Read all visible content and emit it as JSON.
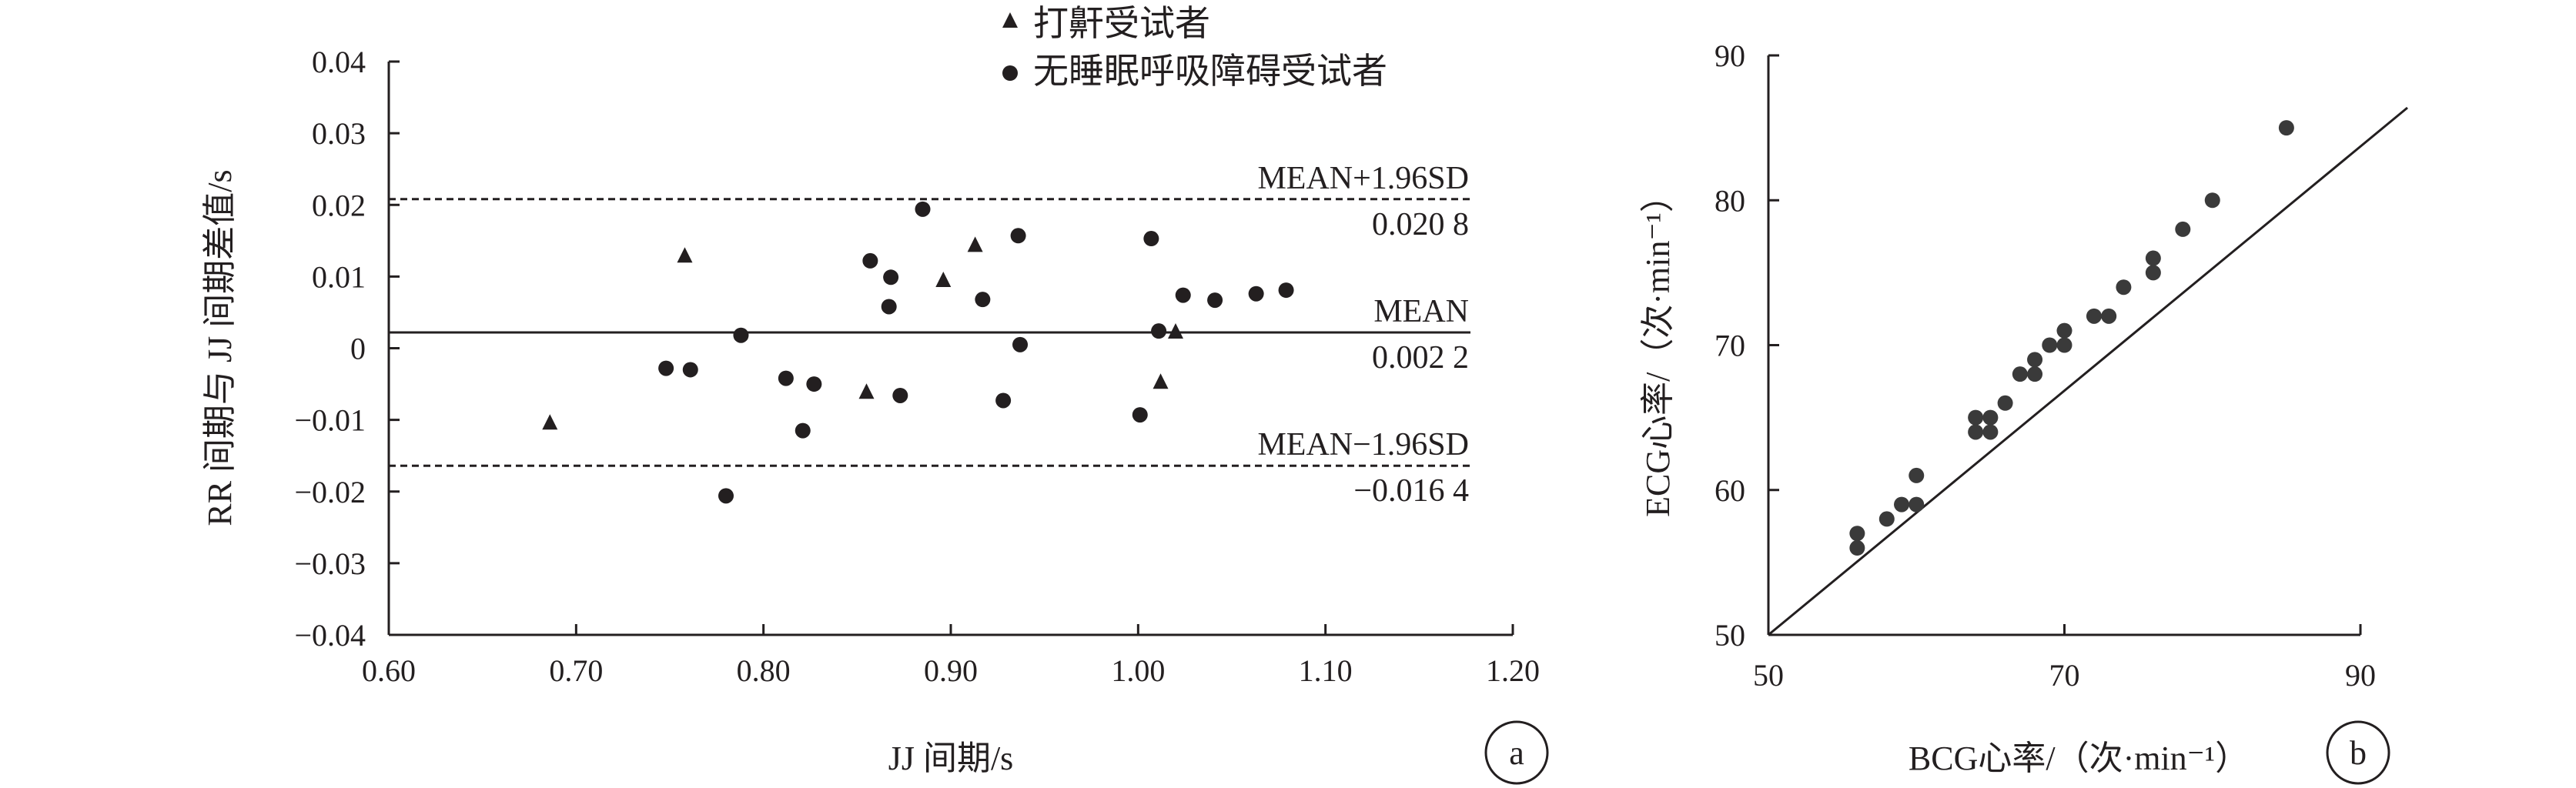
{
  "chart_data": [
    {
      "type": "scatter",
      "xlabel": "JJ 间期/s",
      "ylabel": "RR 间期与 JJ 间期差值/s",
      "xlim": [
        0.6,
        1.2
      ],
      "ylim": [
        -0.04,
        0.04
      ],
      "xticks": [
        "0.60",
        "0.70",
        "0.80",
        "0.90",
        "1.00",
        "1.10",
        "1.20"
      ],
      "yticks": [
        "0.04",
        "0.03",
        "0.02",
        "0.01",
        "0",
        "−0.01",
        "−0.02",
        "−0.03",
        "−0.04"
      ],
      "legend": [
        "打鼾受试者",
        "无睡眠呼吸障碍受试者"
      ],
      "series": [
        {
          "name": "打鼾受试者",
          "marker": "triangle",
          "points": [
            [
              0.686,
              -0.0105
            ],
            [
              0.758,
              0.0128
            ],
            [
              0.855,
              -0.0062
            ],
            [
              0.896,
              0.0094
            ],
            [
              0.913,
              0.0143
            ],
            [
              1.012,
              -0.0048
            ],
            [
              1.02,
              0.0022
            ]
          ]
        },
        {
          "name": "无睡眠呼吸障碍受试者",
          "marker": "circle",
          "points": [
            [
              0.748,
              -0.0028
            ],
            [
              0.761,
              -0.003
            ],
            [
              0.78,
              -0.0206
            ],
            [
              0.788,
              0.0018
            ],
            [
              0.812,
              -0.0042
            ],
            [
              0.821,
              -0.0115
            ],
            [
              0.827,
              -0.005
            ],
            [
              0.857,
              0.0122
            ],
            [
              0.867,
              0.0058
            ],
            [
              0.868,
              0.0099
            ],
            [
              0.873,
              -0.0066
            ],
            [
              0.885,
              0.0194
            ],
            [
              0.917,
              0.0068
            ],
            [
              0.928,
              -0.0073
            ],
            [
              0.936,
              0.0157
            ],
            [
              0.937,
              0.0005
            ],
            [
              1.001,
              -0.0093
            ],
            [
              1.007,
              0.0153
            ],
            [
              1.011,
              0.0024
            ],
            [
              1.024,
              0.0074
            ],
            [
              1.041,
              0.0067
            ],
            [
              1.063,
              0.0076
            ],
            [
              1.079,
              0.0081
            ]
          ]
        }
      ],
      "reference_lines": [
        {
          "label": "MEAN+1.96SD",
          "value_text": "0.020 8",
          "y": 0.0208,
          "style": "dashed"
        },
        {
          "label": "MEAN",
          "value_text": "0.002 2",
          "y": 0.0022,
          "style": "solid"
        },
        {
          "label": "MEAN−1.96SD",
          "value_text": "−0.016 4",
          "y": -0.0164,
          "style": "dashed"
        }
      ],
      "panel_label": "a"
    },
    {
      "type": "scatter",
      "xlabel": "BCG心率/（次·min⁻¹）",
      "ylabel": "ECG心率/（次·min⁻¹）",
      "xlim": [
        50,
        90
      ],
      "ylim": [
        50,
        90
      ],
      "xticks": [
        "50",
        "70",
        "90"
      ],
      "yticks": [
        "90",
        "80",
        "70",
        "60",
        "50"
      ],
      "identity_line": true,
      "series": [
        {
          "marker": "circle",
          "points": [
            [
              56,
              56
            ],
            [
              56,
              57
            ],
            [
              58,
              58
            ],
            [
              59,
              59
            ],
            [
              60,
              59
            ],
            [
              60,
              61
            ],
            [
              64,
              64
            ],
            [
              64,
              65
            ],
            [
              65,
              64
            ],
            [
              65,
              65
            ],
            [
              66,
              66
            ],
            [
              67,
              68
            ],
            [
              68,
              68
            ],
            [
              68,
              69
            ],
            [
              69,
              70
            ],
            [
              70,
              70
            ],
            [
              70,
              71
            ],
            [
              72,
              72
            ],
            [
              73,
              72
            ],
            [
              74,
              74
            ],
            [
              76,
              75
            ],
            [
              76,
              76
            ],
            [
              78,
              78
            ],
            [
              80,
              80
            ],
            [
              85,
              85
            ]
          ]
        }
      ],
      "panel_label": "b"
    }
  ]
}
